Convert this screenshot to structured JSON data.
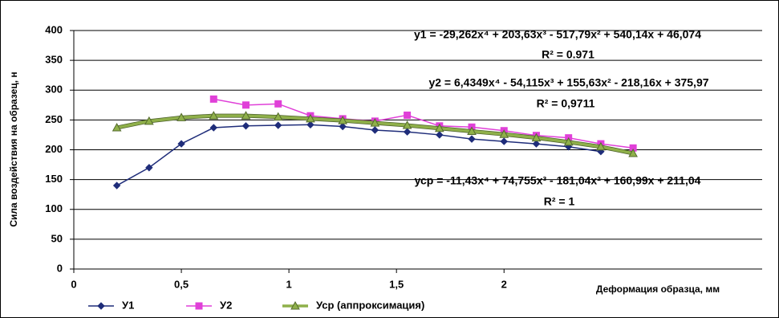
{
  "chart_data": {
    "type": "line",
    "y_label": "Сила воздействия на образец, н",
    "x_label": "Деформация образца, мм",
    "x": [
      0.2,
      0.35,
      0.5,
      0.65,
      0.8,
      0.95,
      1.1,
      1.25,
      1.4,
      1.55,
      1.7,
      1.85,
      2.0,
      2.15,
      2.3,
      2.45,
      2.6
    ],
    "series": [
      {
        "name": "У1",
        "color": "#1f2d7a",
        "marker": "diamond",
        "values": [
          140,
          170,
          210,
          237,
          240,
          241,
          242,
          239,
          233,
          230,
          225,
          218,
          214,
          210,
          205,
          197,
          null
        ]
      },
      {
        "name": "У2",
        "color": "#e040d8",
        "marker": "square",
        "values": [
          null,
          null,
          null,
          285,
          275,
          277,
          257,
          252,
          248,
          258,
          240,
          238,
          232,
          224,
          220,
          210,
          203
        ]
      },
      {
        "name": "Уср  (аппроксимация)",
        "color": "#8fb04a",
        "marker": "triangle",
        "values": [
          237,
          248,
          254,
          257,
          257,
          255,
          252,
          249,
          245,
          241,
          236,
          231,
          226,
          220,
          213,
          205,
          194
        ]
      }
    ],
    "annotations": [
      "y1 = -29,262x⁴ + 203,63x³ - 517,79x² + 540,14x + 46,074",
      "R² = 0.971",
      "y2 = 6,4349x⁴ - 54,115x³ + 155,63x² - 218,16x + 375,97",
      "R² = 0,9711",
      "уср = -11,43x⁴ + 74,755x³ - 181,04x² + 160,99x + 211,04",
      "R² = 1"
    ],
    "xlim": [
      0,
      3.2
    ],
    "xticks": [
      0,
      {
        "value": 0.5,
        "label": "0,5"
      },
      1,
      {
        "value": 1.5,
        "label": "1,5"
      },
      2
    ],
    "ylim": [
      0,
      400
    ],
    "yticks": [
      0,
      50,
      100,
      150,
      200,
      250,
      300,
      350,
      400
    ],
    "grid": true
  }
}
